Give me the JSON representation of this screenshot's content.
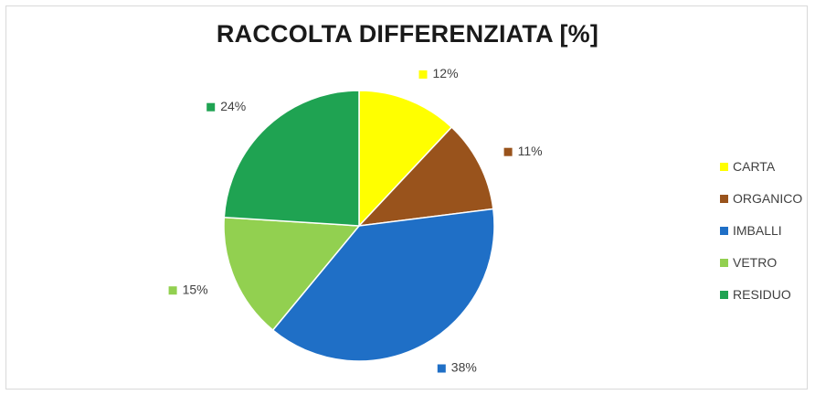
{
  "chart_data": {
    "type": "pie",
    "title": "RACCOLTA DIFFERENZIATA [%]",
    "categories": [
      "CARTA",
      "ORGANICO",
      "IMBALLI",
      "VETRO",
      "RESIDUO"
    ],
    "values": [
      12,
      11,
      38,
      15,
      24
    ],
    "data_labels": [
      "12%",
      "11%",
      "38%",
      "15%",
      "24%"
    ],
    "colors": [
      "#ffff00",
      "#99531c",
      "#1f6fc6",
      "#92d050",
      "#1fa352"
    ],
    "start_angle_deg": 0,
    "direction": "clockwise",
    "legend_position": "right"
  }
}
